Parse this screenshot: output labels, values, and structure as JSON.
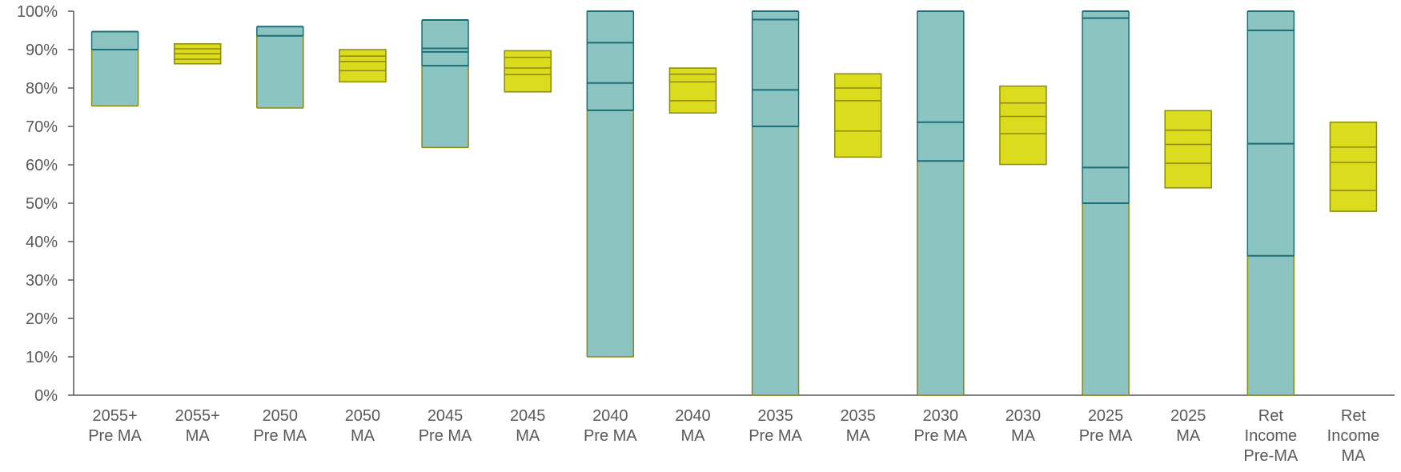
{
  "chart_data": {
    "type": "bar",
    "subtype": "floating-stacked-range",
    "title": "",
    "xlabel": "",
    "ylabel": "",
    "ylim": [
      0,
      100
    ],
    "y_ticks": [
      "0%",
      "10%",
      "20%",
      "30%",
      "40%",
      "50%",
      "60%",
      "70%",
      "80%",
      "90%",
      "100%"
    ],
    "grid": false,
    "legend": "none",
    "colors": {
      "pre_ma_fill": "#8cc4c2",
      "pre_ma_line": "#1a6e78",
      "ma_fill": "#dcdc1e",
      "ma_line": "#8a8a10",
      "axis": "#595959"
    },
    "categories": [
      {
        "label_lines": [
          "2055+",
          "Pre MA"
        ],
        "kind": "pre_ma",
        "values": [
          75.3,
          90.0,
          94.7
        ]
      },
      {
        "label_lines": [
          "2055+",
          "MA"
        ],
        "kind": "ma",
        "values": [
          86.3,
          87.5,
          88.9,
          90.2,
          91.5
        ]
      },
      {
        "label_lines": [
          "2050",
          "Pre MA"
        ],
        "kind": "pre_ma",
        "values": [
          74.8,
          93.6,
          96.0
        ]
      },
      {
        "label_lines": [
          "2050",
          "MA"
        ],
        "kind": "ma",
        "values": [
          81.6,
          84.5,
          86.9,
          88.3,
          90.0
        ]
      },
      {
        "label_lines": [
          "2045",
          "Pre MA"
        ],
        "kind": "pre_ma",
        "values": [
          64.5,
          85.8,
          89.4,
          90.3,
          97.7
        ]
      },
      {
        "label_lines": [
          "2045",
          "MA"
        ],
        "kind": "ma",
        "values": [
          79.0,
          83.5,
          85.2,
          88.0,
          89.7
        ]
      },
      {
        "label_lines": [
          "2040",
          "Pre MA"
        ],
        "kind": "pre_ma",
        "values": [
          10.0,
          74.2,
          81.3,
          91.8,
          100.0
        ]
      },
      {
        "label_lines": [
          "2040",
          "MA"
        ],
        "kind": "ma",
        "values": [
          73.5,
          76.7,
          81.6,
          83.6,
          85.2
        ]
      },
      {
        "label_lines": [
          "2035",
          "Pre MA"
        ],
        "kind": "pre_ma",
        "values": [
          0.0,
          70.0,
          79.5,
          97.8,
          100.0
        ]
      },
      {
        "label_lines": [
          "2035",
          "MA"
        ],
        "kind": "ma",
        "values": [
          62.0,
          68.8,
          76.7,
          80.0,
          83.7
        ]
      },
      {
        "label_lines": [
          "2030",
          "Pre MA"
        ],
        "kind": "pre_ma",
        "values": [
          0.0,
          61.0,
          71.1,
          100.0
        ]
      },
      {
        "label_lines": [
          "2030",
          "MA"
        ],
        "kind": "ma",
        "values": [
          60.1,
          68.1,
          72.6,
          76.1,
          80.5
        ]
      },
      {
        "label_lines": [
          "2025",
          "Pre MA"
        ],
        "kind": "pre_ma",
        "values": [
          0.0,
          50.0,
          59.3,
          98.2,
          100.0
        ]
      },
      {
        "label_lines": [
          "2025",
          "MA"
        ],
        "kind": "ma",
        "values": [
          54.0,
          60.4,
          65.3,
          69.0,
          74.1
        ]
      },
      {
        "label_lines": [
          "Ret",
          "Income",
          "Pre-MA"
        ],
        "kind": "pre_ma",
        "values": [
          0.0,
          36.3,
          65.5,
          95.0,
          100.0
        ]
      },
      {
        "label_lines": [
          "Ret",
          "Income",
          "MA"
        ],
        "kind": "ma",
        "values": [
          47.9,
          53.3,
          60.6,
          64.6,
          71.1
        ]
      }
    ]
  }
}
